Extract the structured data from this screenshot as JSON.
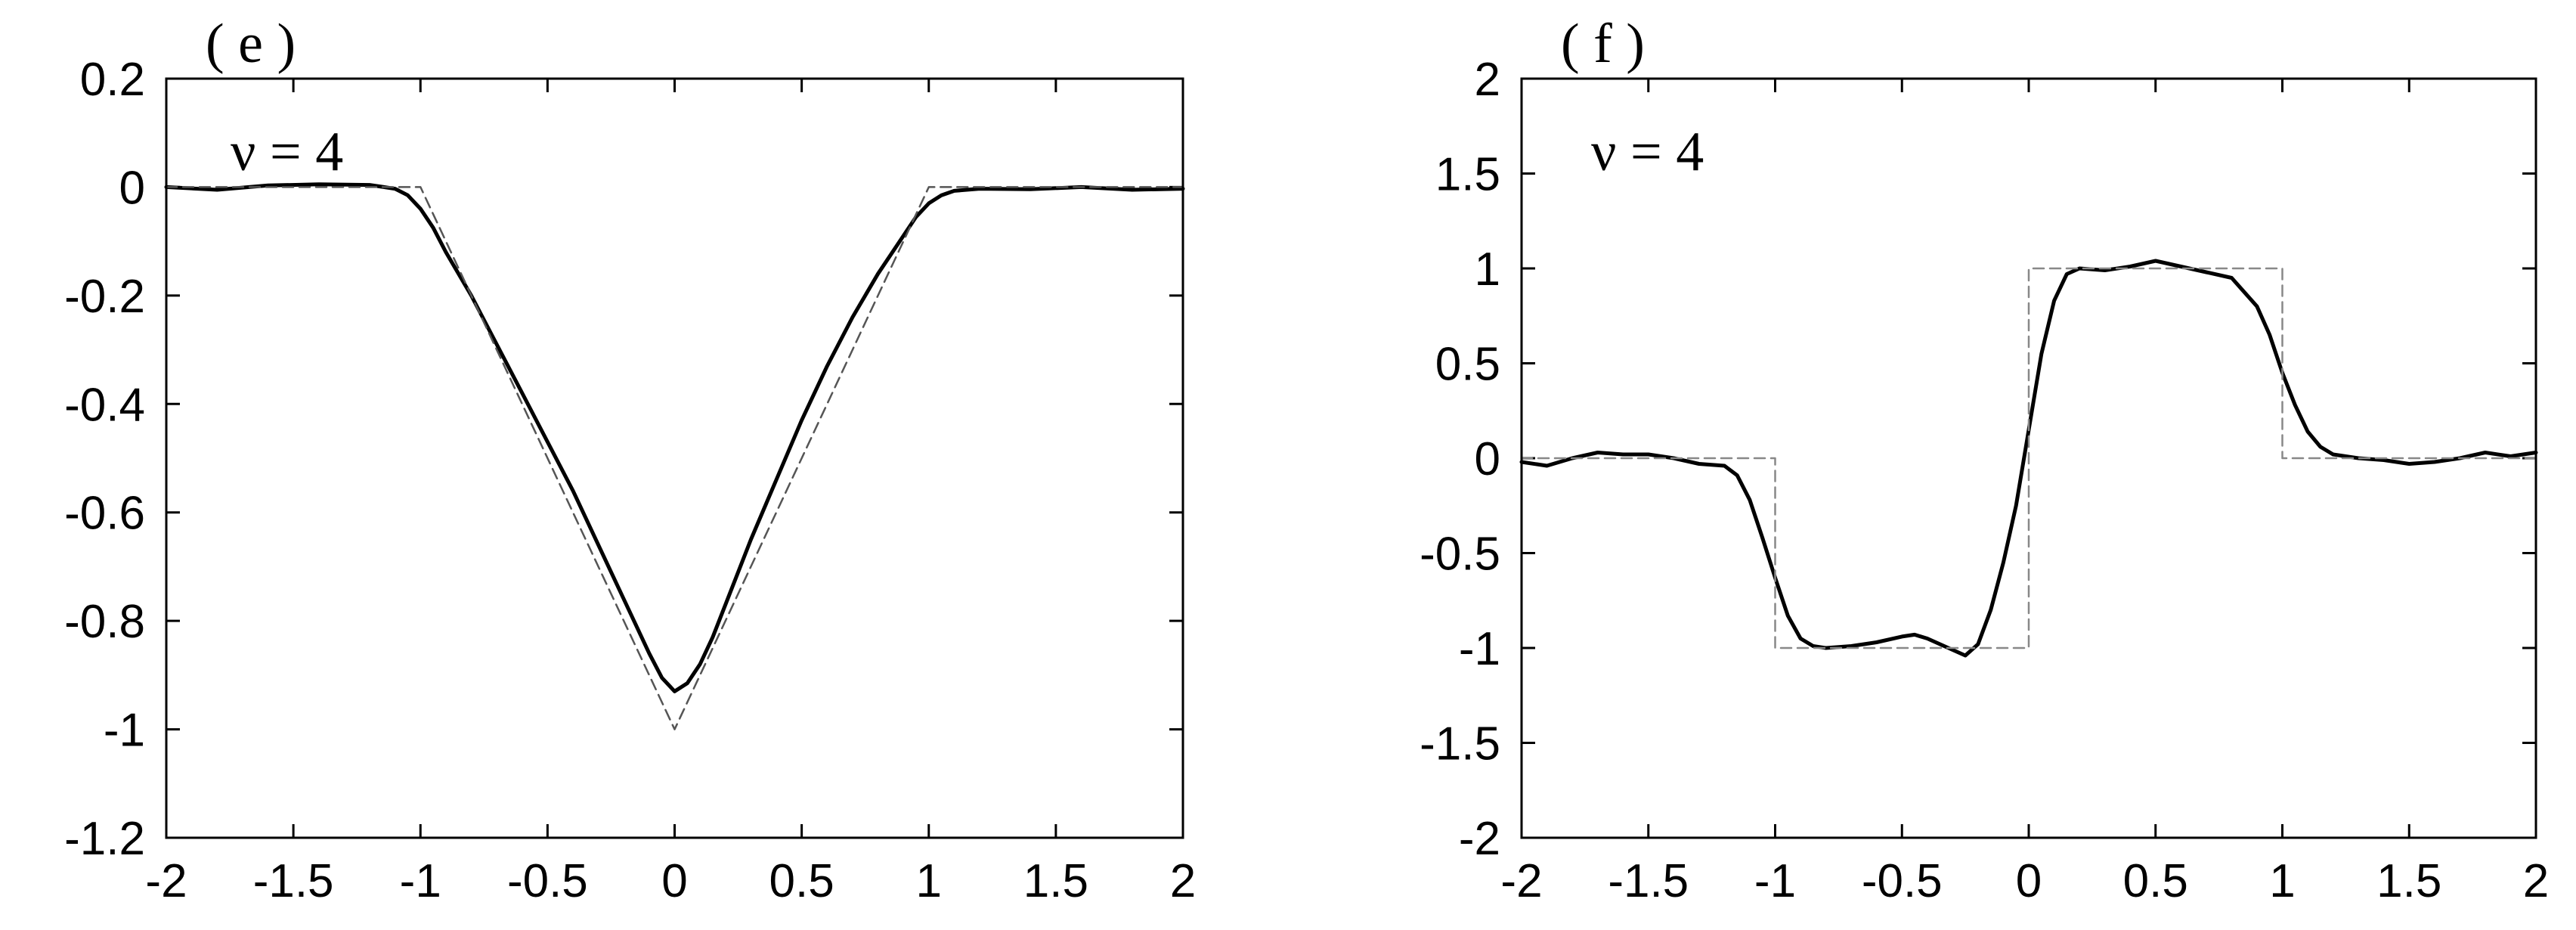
{
  "chart_data": [
    {
      "type": "line",
      "panel_label": "( e )",
      "annotation": "ν = 4",
      "title": "",
      "xlabel": "",
      "ylabel": "",
      "xlim": [
        -2,
        2
      ],
      "ylim": [
        -1.2,
        0.2
      ],
      "xticks": [
        -2,
        -1.5,
        -1,
        -0.5,
        0,
        0.5,
        1,
        1.5,
        2
      ],
      "xtick_labels": [
        "-2",
        "-1.5",
        "-1",
        "-0.5",
        "0",
        "0.5",
        "1",
        "1.5",
        "2"
      ],
      "yticks": [
        0.2,
        0,
        -0.2,
        -0.4,
        -0.6,
        -0.8,
        -1,
        -1.2
      ],
      "ytick_labels": [
        "0.2",
        "0",
        "-0.2",
        "-0.4",
        "-0.6",
        "-0.8",
        "-1",
        "-1.2"
      ],
      "grid": false,
      "legend": "none",
      "series": [
        {
          "style": "solid",
          "color": "#000000",
          "x": [
            -2,
            -1.8,
            -1.6,
            -1.4,
            -1.2,
            -1.1,
            -1.05,
            -1.0,
            -0.95,
            -0.9,
            -0.8,
            -0.7,
            -0.6,
            -0.5,
            -0.4,
            -0.3,
            -0.2,
            -0.15,
            -0.1,
            -0.05,
            0,
            0.05,
            0.1,
            0.15,
            0.2,
            0.3,
            0.4,
            0.5,
            0.6,
            0.7,
            0.8,
            0.9,
            0.95,
            1.0,
            1.05,
            1.1,
            1.2,
            1.4,
            1.6,
            1.8,
            2
          ],
          "y": [
            0,
            -0.005,
            0.003,
            0.005,
            0.004,
            -0.003,
            -0.015,
            -0.04,
            -0.075,
            -0.12,
            -0.2,
            -0.29,
            -0.38,
            -0.47,
            -0.56,
            -0.66,
            -0.76,
            -0.81,
            -0.86,
            -0.905,
            -0.93,
            -0.915,
            -0.88,
            -0.83,
            -0.77,
            -0.65,
            -0.54,
            -0.43,
            -0.33,
            -0.24,
            -0.16,
            -0.09,
            -0.055,
            -0.03,
            -0.015,
            -0.007,
            -0.003,
            -0.004,
            0.0,
            -0.005,
            -0.003
          ]
        },
        {
          "style": "dashed",
          "color": "#555555",
          "x": [
            -2,
            -1,
            0,
            1,
            2
          ],
          "y": [
            0,
            0,
            -1,
            0,
            0
          ]
        }
      ]
    },
    {
      "type": "line",
      "panel_label": "( f )",
      "annotation": "ν = 4",
      "title": "",
      "xlabel": "",
      "ylabel": "",
      "xlim": [
        -2,
        2
      ],
      "ylim": [
        -2,
        2
      ],
      "xticks": [
        -2,
        -1.5,
        -1,
        -0.5,
        0,
        0.5,
        1,
        1.5,
        2
      ],
      "xtick_labels": [
        "-2",
        "-1.5",
        "-1",
        "-0.5",
        "0",
        "0.5",
        "1",
        "1.5",
        "2"
      ],
      "yticks": [
        2,
        1.5,
        1,
        0.5,
        0,
        -0.5,
        -1,
        -1.5,
        -2
      ],
      "ytick_labels": [
        "2",
        "1.5",
        "1",
        "0.5",
        "0",
        "-0.5",
        "-1",
        "-1.5",
        "-2"
      ],
      "grid": false,
      "legend": "none",
      "series": [
        {
          "style": "solid",
          "color": "#000000",
          "x": [
            -2,
            -1.9,
            -1.8,
            -1.7,
            -1.6,
            -1.5,
            -1.4,
            -1.3,
            -1.2,
            -1.15,
            -1.1,
            -1.05,
            -1.0,
            -0.95,
            -0.9,
            -0.85,
            -0.8,
            -0.7,
            -0.6,
            -0.5,
            -0.45,
            -0.4,
            -0.3,
            -0.25,
            -0.2,
            -0.15,
            -0.1,
            -0.05,
            0,
            0.05,
            0.1,
            0.15,
            0.2,
            0.3,
            0.4,
            0.5,
            0.6,
            0.7,
            0.8,
            0.9,
            0.95,
            1.0,
            1.05,
            1.1,
            1.15,
            1.2,
            1.3,
            1.4,
            1.5,
            1.6,
            1.7,
            1.8,
            1.9,
            2
          ],
          "y": [
            -0.02,
            -0.04,
            0.0,
            0.03,
            0.02,
            0.02,
            0.0,
            -0.03,
            -0.04,
            -0.09,
            -0.22,
            -0.42,
            -0.63,
            -0.83,
            -0.95,
            -0.99,
            -1.0,
            -0.99,
            -0.97,
            -0.94,
            -0.93,
            -0.95,
            -1.01,
            -1.04,
            -0.98,
            -0.8,
            -0.55,
            -0.25,
            0.15,
            0.55,
            0.83,
            0.97,
            1.0,
            0.99,
            1.01,
            1.04,
            1.01,
            0.98,
            0.95,
            0.8,
            0.65,
            0.45,
            0.28,
            0.14,
            0.06,
            0.02,
            0.0,
            -0.01,
            -0.03,
            -0.02,
            0.0,
            0.03,
            0.01,
            0.03
          ]
        },
        {
          "style": "dashed",
          "color": "#888888",
          "x": [
            -2,
            -1,
            -1,
            0,
            0,
            1,
            1,
            2
          ],
          "y": [
            0,
            0,
            -1,
            -1,
            1,
            1,
            0,
            0
          ]
        }
      ]
    }
  ]
}
